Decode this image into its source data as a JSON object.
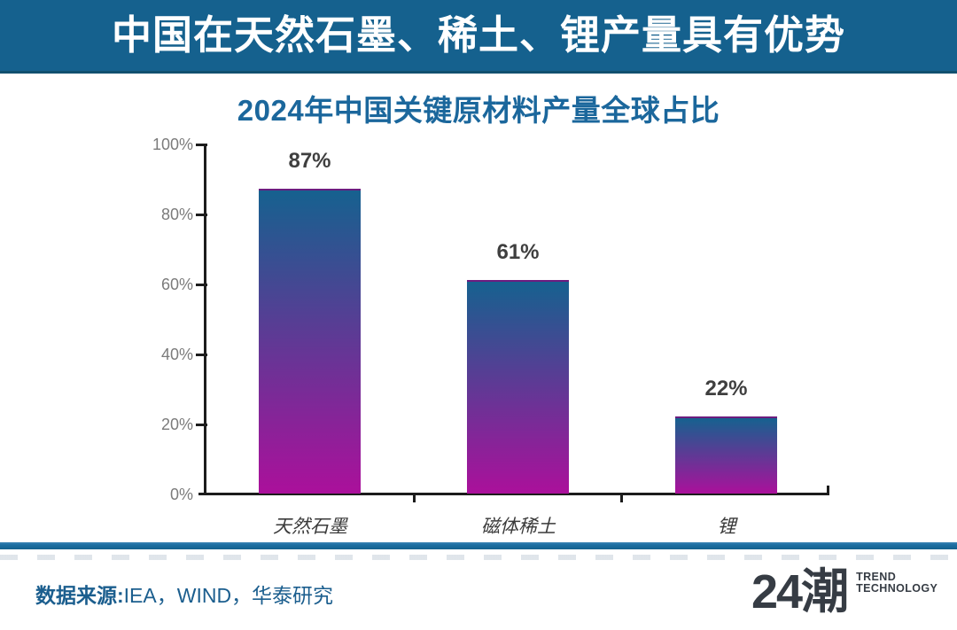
{
  "banner": {
    "title": "中国在天然石墨、稀土、锂产量具有优势",
    "bg_color": "#15618E",
    "text_color": "#FFFFFF"
  },
  "chart": {
    "title": "2024年中国关键原材料产量全球占比",
    "title_color": "#1B679C"
  },
  "chart_data": {
    "type": "bar",
    "title": "2024年中国关键原材料产量全球占比",
    "categories": [
      "天然石墨",
      "磁体稀土",
      "锂"
    ],
    "values": [
      87,
      61,
      22
    ],
    "value_labels": [
      "87%",
      "61%",
      "22%"
    ],
    "yticks": [
      "100%",
      "80%",
      "60%",
      "40%",
      "20%",
      "0%"
    ],
    "ylim": [
      0,
      100
    ],
    "xlabel": "",
    "ylabel": "",
    "grid": false,
    "legend": false,
    "bar_color_top": "#16618F",
    "bar_color_bottom": "#AB109B",
    "axis_color": "#1C1C1C",
    "tick_label_color": "#7B7B7B",
    "value_label_color": "#3F3F3F"
  },
  "footer": {
    "source_label": "数据来源:",
    "source_text": "IEA，WIND，华泰研究",
    "text_color": "#1B5E8E",
    "divider_color": "#1D6FA3",
    "logo": {
      "wordmark": "24潮",
      "tagline_line1": "TREND",
      "tagline_line2": "TECHNOLOGY",
      "color": "#363C44"
    }
  }
}
